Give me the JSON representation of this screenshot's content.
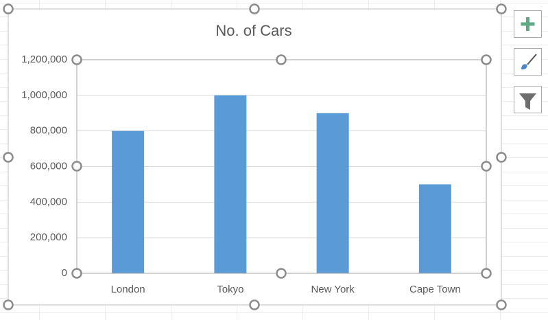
{
  "chart_data": {
    "type": "bar",
    "title": "No. of Cars",
    "categories": [
      "London",
      "Tokyo",
      "New York",
      "Cape Town"
    ],
    "values": [
      800000,
      1000000,
      900000,
      500000
    ],
    "color": "#5b9bd5",
    "ylim": [
      0,
      1200000
    ],
    "yticks": [
      0,
      {
        "value": 200000,
        "label": "200,000"
      },
      {
        "value": 400000,
        "label": "400,000"
      },
      {
        "value": 600000,
        "label": "600,000"
      },
      {
        "value": 800000,
        "label": "800,000"
      },
      {
        "value": 1000000,
        "label": "1,000,000"
      },
      {
        "value": 1200000,
        "label": "1,200,000"
      }
    ],
    "grid": true
  }
}
